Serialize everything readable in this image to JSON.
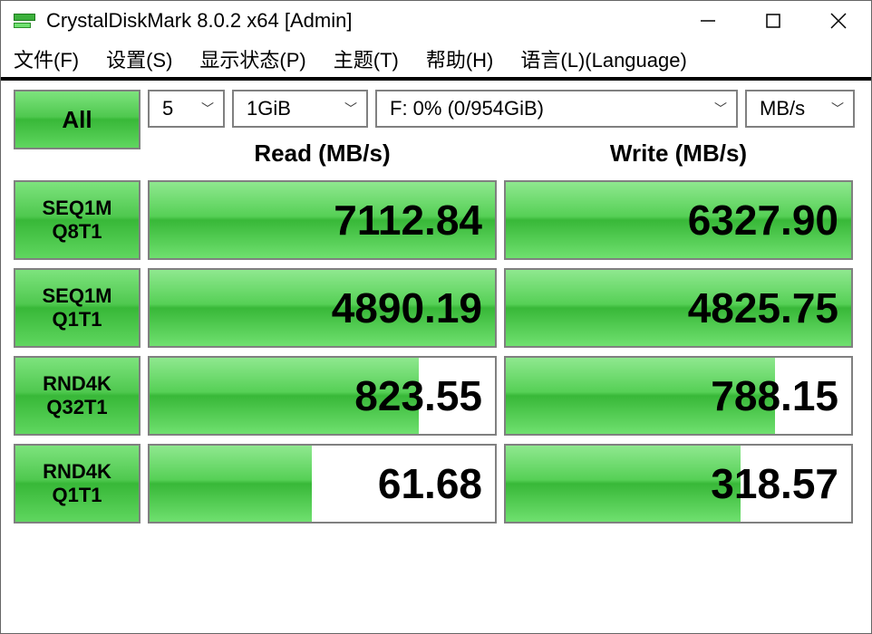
{
  "window": {
    "title": "CrystalDiskMark 8.0.2 x64 [Admin]"
  },
  "menu": {
    "file": "文件(F)",
    "settings": "设置(S)",
    "display": "显示状态(P)",
    "theme": "主题(T)",
    "help": "帮助(H)",
    "language": "语言(L)(Language)"
  },
  "controls": {
    "all_label": "All",
    "runs": "5",
    "size": "1GiB",
    "drive": "F: 0% (0/954GiB)",
    "unit": "MB/s"
  },
  "headers": {
    "read": "Read (MB/s)",
    "write": "Write (MB/s)"
  },
  "tests": [
    {
      "line1": "SEQ1M",
      "line2": "Q8T1",
      "read": "7112.84",
      "read_fill": 100,
      "write": "6327.90",
      "write_fill": 100
    },
    {
      "line1": "SEQ1M",
      "line2": "Q1T1",
      "read": "4890.19",
      "read_fill": 100,
      "write": "4825.75",
      "write_fill": 100
    },
    {
      "line1": "RND4K",
      "line2": "Q32T1",
      "read": "823.55",
      "read_fill": 78,
      "write": "788.15",
      "write_fill": 78
    },
    {
      "line1": "RND4K",
      "line2": "Q1T1",
      "read": "61.68",
      "read_fill": 47,
      "write": "318.57",
      "write_fill": 68
    }
  ],
  "colors": {
    "gradient_light": "#7de37d",
    "gradient_mid": "#4fc84f",
    "gradient_dark": "#38b838",
    "border": "#808080",
    "text": "#000000",
    "background": "#ffffff"
  }
}
